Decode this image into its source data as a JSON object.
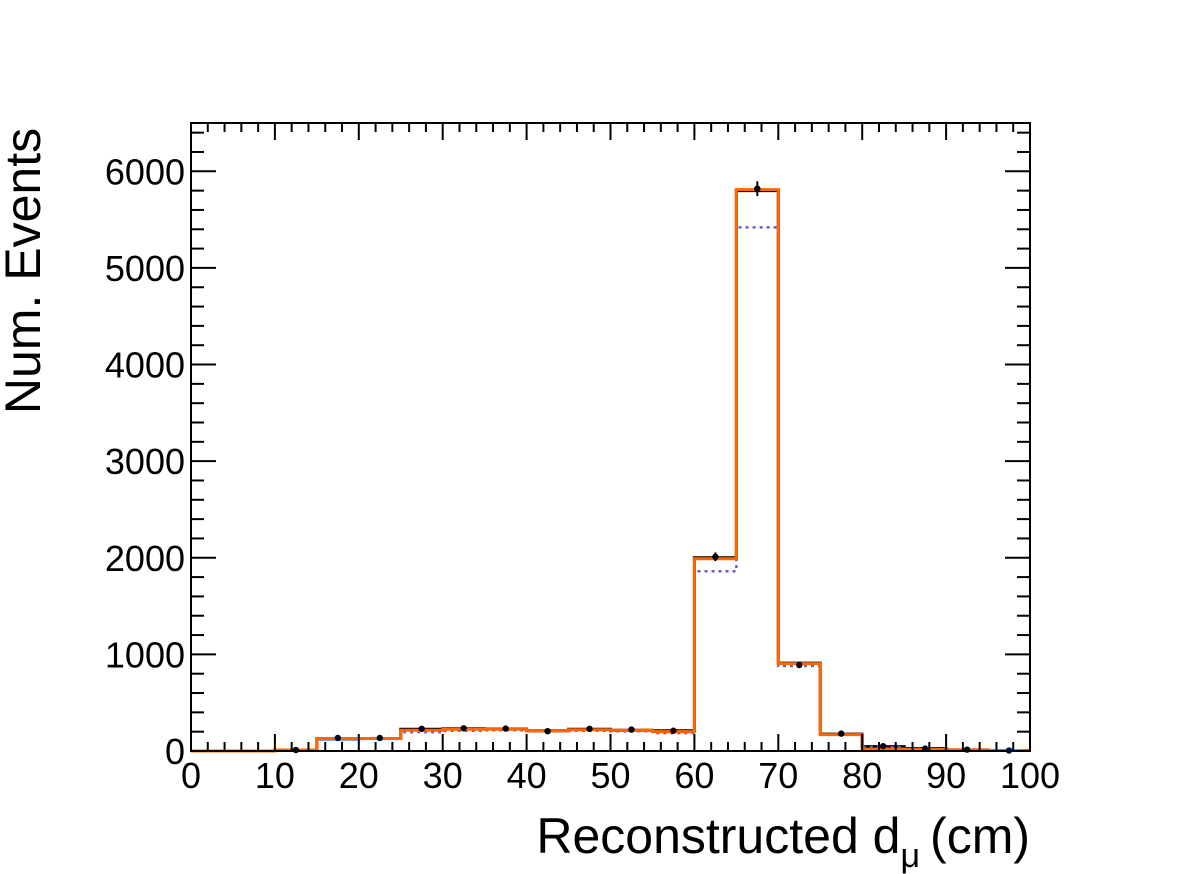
{
  "chart_data": {
    "type": "bar",
    "xlabel": "Reconstructed d",
    "xlabel_subscript": "μ",
    "xlabel_unit": "(cm)",
    "ylabel": "Num. Events",
    "xlim": [
      0,
      100
    ],
    "ylim": [
      0,
      6500
    ],
    "grid": false,
    "x_ticks": [
      "0",
      "10",
      "20",
      "30",
      "40",
      "50",
      "60",
      "70",
      "80",
      "90",
      "100"
    ],
    "y_ticks": [
      "0",
      "1000",
      "2000",
      "3000",
      "4000",
      "5000",
      "6000"
    ],
    "bin_edges": [
      0,
      5,
      10,
      15,
      20,
      25,
      30,
      35,
      40,
      45,
      50,
      55,
      60,
      65,
      70,
      75,
      80,
      85,
      90,
      95,
      100
    ],
    "series": [
      {
        "style": "points",
        "color": "#000000",
        "values": [
          0,
          0,
          10,
          135,
          135,
          230,
          235,
          232,
          205,
          230,
          222,
          210,
          2010,
          5820,
          890,
          180,
          50,
          25,
          15,
          5
        ],
        "errors": [
          0,
          0,
          3,
          12,
          12,
          15,
          15,
          15,
          14,
          15,
          15,
          14,
          45,
          76,
          30,
          13,
          7,
          5,
          4,
          2
        ]
      },
      {
        "style": "step",
        "color": "#000000",
        "values": [
          0,
          0,
          10,
          125,
          130,
          225,
          230,
          228,
          210,
          225,
          215,
          210,
          2000,
          5800,
          910,
          175,
          45,
          25,
          12,
          5
        ]
      },
      {
        "style": "dotted-step",
        "color": "#6a5acd",
        "values": [
          0,
          0,
          10,
          120,
          125,
          195,
          210,
          215,
          205,
          210,
          205,
          185,
          1860,
          5420,
          880,
          170,
          40,
          20,
          10,
          4
        ]
      },
      {
        "style": "step",
        "color": "#ff6600",
        "values": [
          0,
          0,
          10,
          130,
          130,
          215,
          225,
          225,
          210,
          220,
          215,
          200,
          1990,
          5810,
          905,
          170,
          20,
          15,
          10,
          5
        ]
      }
    ]
  }
}
